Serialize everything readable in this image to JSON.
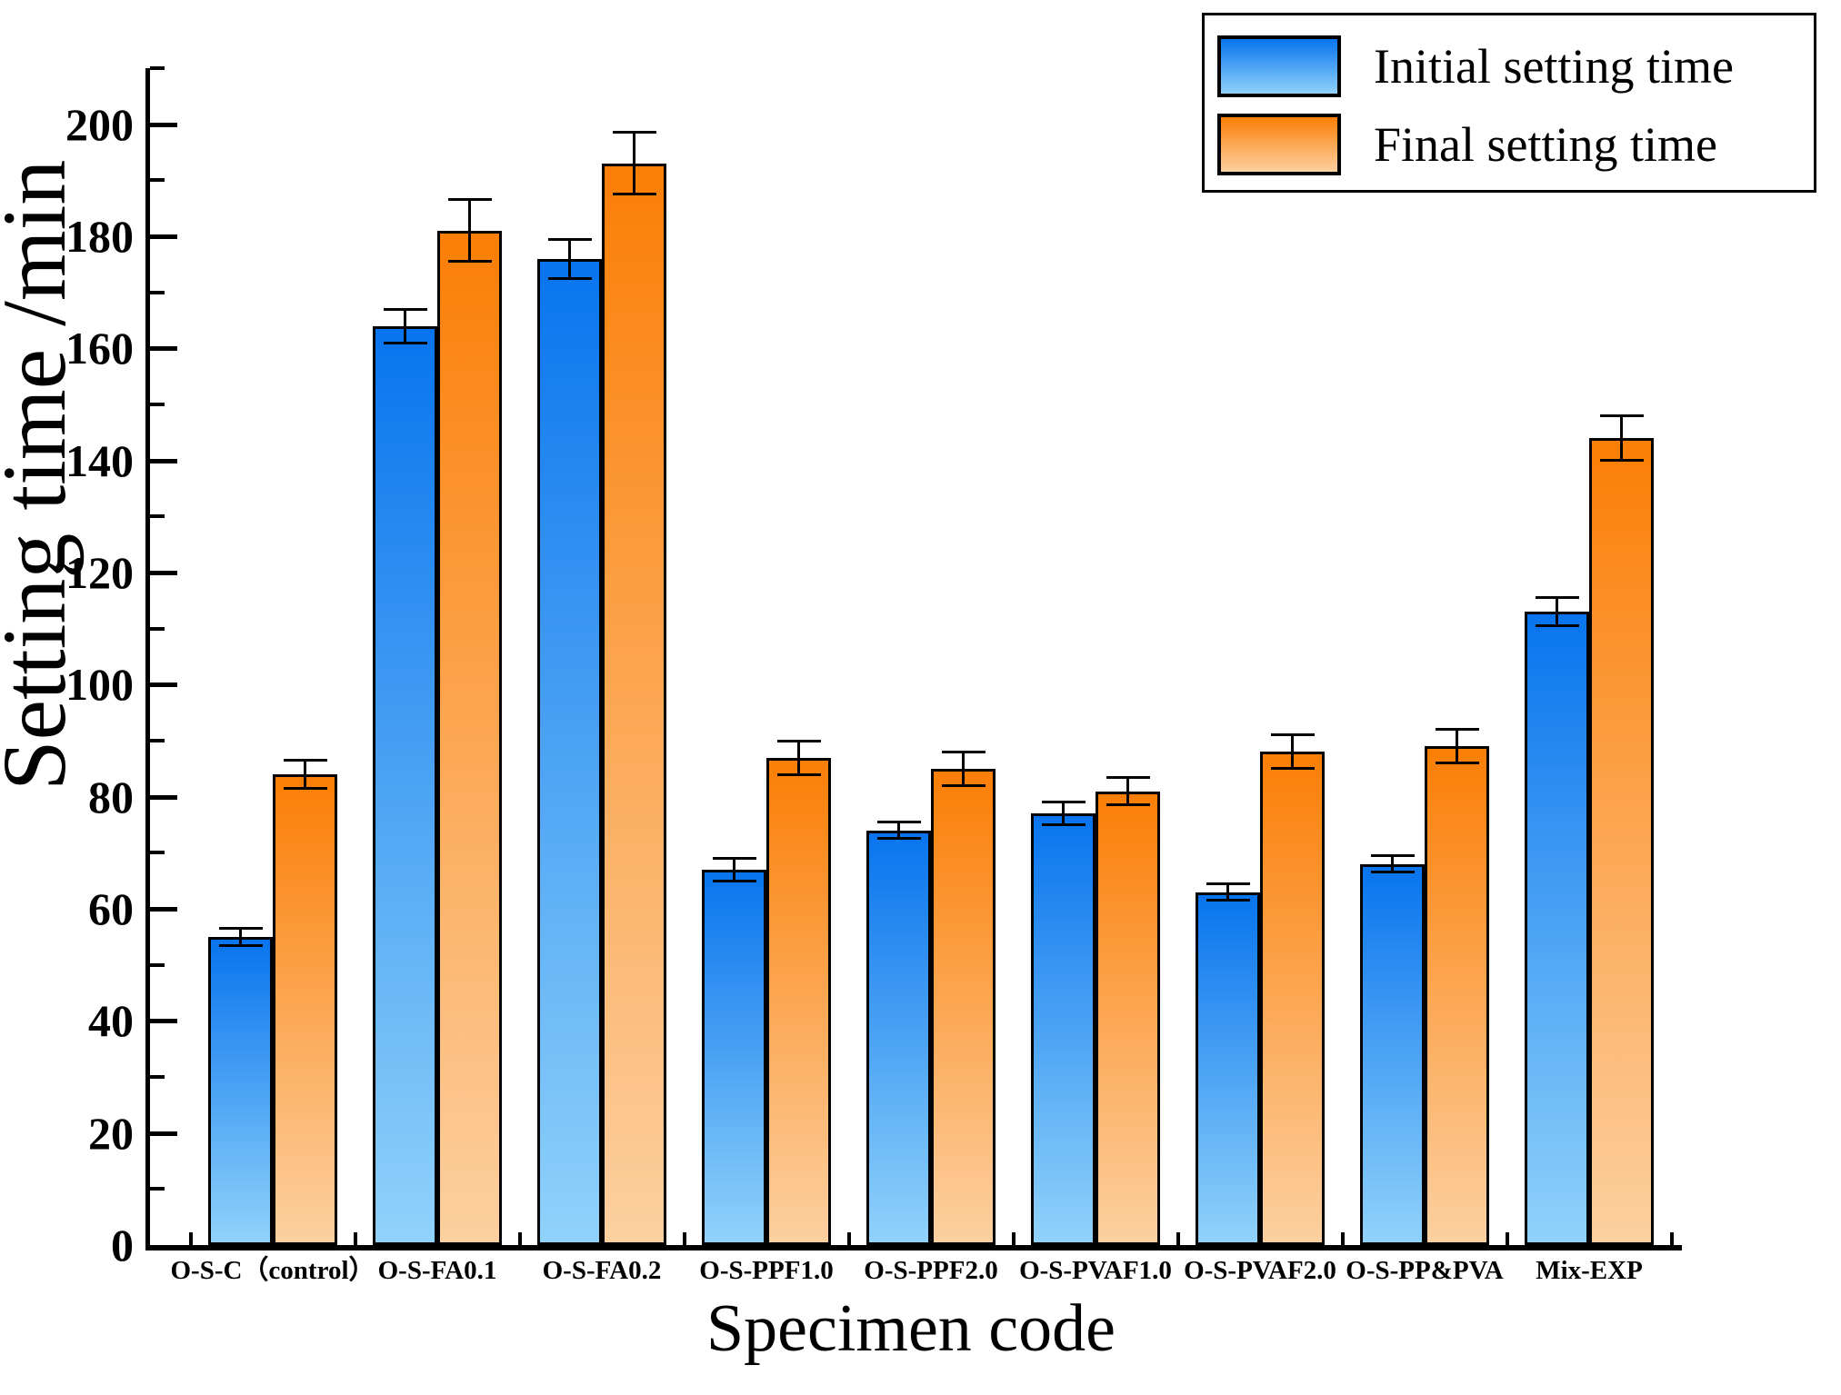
{
  "chart_data": {
    "type": "bar",
    "title": "",
    "xlabel": "Specimen code",
    "ylabel": "Setting time /min",
    "ylim": [
      0,
      210
    ],
    "ytick_major_step": 20,
    "ytick_minor_step": 10,
    "ytick_labels": [
      0,
      20,
      40,
      60,
      80,
      100,
      120,
      140,
      160,
      180,
      200
    ],
    "grid": false,
    "legend_position": "top-right",
    "categories": [
      "O-S-C（control）",
      "O-S-FA0.1",
      "O-S-FA0.2",
      "O-S-PPF1.0",
      "O-S-PPF2.0",
      "O-S-PVAF1.0",
      "O-S-PVAF2.0",
      "O-S-PP&PVA",
      "Mix-EXP"
    ],
    "series": [
      {
        "name": "Initial setting time",
        "color_top": "#0874ee",
        "color_bottom": "#90d2fa",
        "values": [
          55,
          164,
          176,
          67,
          74,
          77,
          63,
          68,
          113
        ],
        "errors": [
          1.5,
          3,
          3.5,
          2,
          1.5,
          2,
          1.5,
          1.5,
          2.5
        ]
      },
      {
        "name": "Final setting time",
        "color_top": "#fb7e06",
        "color_bottom": "#fcd0a0",
        "values": [
          84,
          181,
          193,
          87,
          85,
          81,
          88,
          89,
          144
        ],
        "errors": [
          2.5,
          5.5,
          5.5,
          3,
          3,
          2.5,
          3,
          3,
          4
        ]
      }
    ],
    "bar_border_color": "#000000",
    "error_bar_color": "#000000"
  }
}
